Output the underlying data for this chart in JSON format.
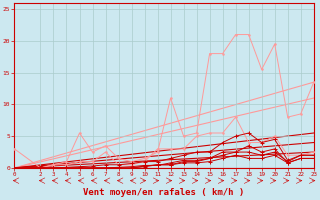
{
  "background_color": "#cce8f0",
  "grid_color": "#aacccc",
  "xlabel": "Vent moyen/en rafales ( km/h )",
  "xlabel_color": "#cc0000",
  "xlabel_fontsize": 6.5,
  "ylabel_ticks": [
    0,
    5,
    10,
    15,
    20,
    25
  ],
  "xlim": [
    0,
    23
  ],
  "ylim": [
    0,
    26
  ],
  "x_ticks": [
    0,
    2,
    3,
    4,
    5,
    6,
    7,
    8,
    9,
    10,
    11,
    12,
    13,
    14,
    15,
    16,
    17,
    18,
    19,
    20,
    21,
    22,
    23
  ],
  "line_dark_color": "#cc0000",
  "line_light_color": "#ff9999",
  "lines_dark": [
    [
      0,
      0,
      2,
      0,
      3,
      0,
      4,
      0,
      5,
      0,
      6,
      0,
      7,
      0,
      8,
      0,
      9,
      0,
      10,
      0.3,
      11,
      0.5,
      12,
      0.5,
      13,
      1.0,
      14,
      1.0,
      15,
      1.5,
      16,
      2.0,
      17,
      2.5,
      18,
      2.5,
      19,
      2.0,
      20,
      2.5,
      21,
      1.0,
      22,
      2.0,
      23,
      2.0
    ],
    [
      0,
      0,
      2,
      0,
      3,
      0,
      4,
      0,
      5,
      0,
      6,
      0,
      7,
      0,
      8,
      0,
      9,
      0,
      10,
      0.2,
      11,
      0.5,
      12,
      0.5,
      13,
      0.8,
      14,
      0.8,
      15,
      1.0,
      16,
      1.5,
      17,
      2.0,
      18,
      1.5,
      19,
      1.5,
      20,
      2.0,
      21,
      0.8,
      22,
      1.5,
      23,
      1.5
    ],
    [
      0,
      0,
      2,
      0,
      3,
      0,
      4,
      0,
      5,
      0,
      6,
      0,
      7,
      0,
      8,
      0.1,
      9,
      0.2,
      10,
      0.4,
      11,
      0.4,
      12,
      0.8,
      13,
      1.2,
      14,
      1.2,
      15,
      1.5,
      16,
      2.5,
      17,
      2.5,
      18,
      3.5,
      19,
      2.5,
      20,
      3.0,
      21,
      0.8,
      22,
      1.5,
      23,
      1.5
    ],
    [
      0,
      0,
      2,
      0,
      3,
      0,
      4,
      0.1,
      5,
      0.2,
      6,
      0.3,
      7,
      0.5,
      8,
      0.5,
      9,
      0.7,
      10,
      1.0,
      11,
      1.0,
      12,
      1.5,
      13,
      2.0,
      14,
      2.5,
      15,
      2.5,
      16,
      4.0,
      17,
      5.0,
      18,
      5.5,
      19,
      4.0,
      20,
      4.5,
      21,
      1.2,
      22,
      2.0,
      23,
      2.0
    ]
  ],
  "lines_light": [
    [
      0,
      3,
      2,
      0,
      3,
      0.5,
      4,
      1.0,
      5,
      5.5,
      6,
      2.5,
      7,
      3.5,
      8,
      1.5,
      9,
      1.0,
      10,
      1.5,
      11,
      2.5,
      12,
      11.0,
      13,
      5.0,
      14,
      5.5,
      15,
      18.0,
      16,
      18.0,
      17,
      21.0,
      18,
      21.0,
      19,
      15.5,
      20,
      19.5,
      21,
      8.0,
      22,
      8.5,
      23,
      13.5
    ],
    [
      0,
      0,
      2,
      0,
      3,
      0.5,
      4,
      0.5,
      5,
      1.0,
      6,
      1.0,
      7,
      2.5,
      8,
      0.5,
      9,
      0.5,
      10,
      1.0,
      11,
      3.0,
      12,
      3.0,
      13,
      3.0,
      14,
      5.0,
      15,
      5.5,
      16,
      5.5,
      17,
      8.0,
      18,
      4.0,
      19,
      4.0,
      20,
      5.0,
      21,
      2.0,
      22,
      2.0,
      23,
      2.5
    ]
  ],
  "diagonals_light": [
    [
      [
        0,
        0
      ],
      [
        23,
        13.5
      ]
    ],
    [
      [
        0,
        0
      ],
      [
        23,
        11.0
      ]
    ]
  ],
  "diagonals_dark": [
    [
      [
        0,
        0
      ],
      [
        23,
        5.5
      ]
    ],
    [
      [
        0,
        0
      ],
      [
        23,
        4.0
      ]
    ],
    [
      [
        0,
        0
      ],
      [
        23,
        2.5
      ]
    ]
  ]
}
